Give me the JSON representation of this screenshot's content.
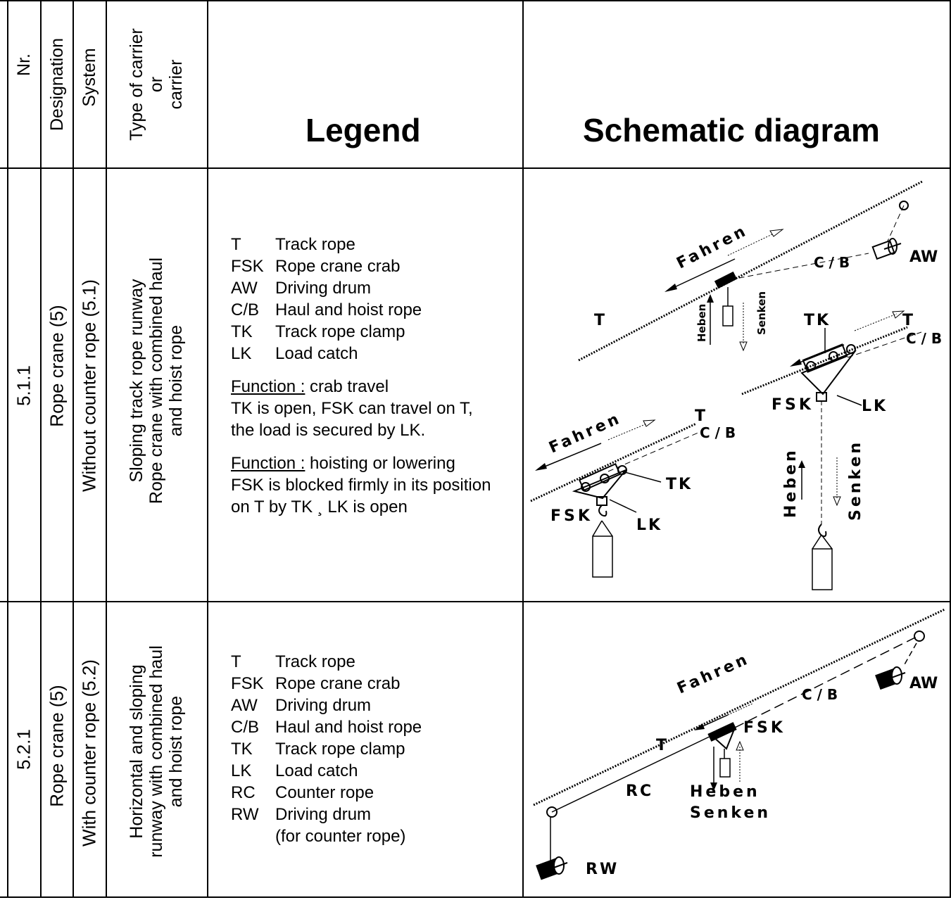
{
  "header": {
    "nr": "Nr.",
    "designation": "Designation",
    "system": "System",
    "type_line1": "Type of carrier",
    "type_line2": "or",
    "type_line3": "carrier",
    "legend": "Legend",
    "schematic": "Schematic diagram"
  },
  "rows": [
    {
      "nr": "5.1.1",
      "designation": "Rope crane (5)",
      "system": "Without counter rope (5.1)",
      "type_line1": "Sloping track rope runway",
      "type_line2": "Rope crane with combined haul",
      "type_line3": "and hoist rope",
      "legend_items": [
        {
          "code": "T",
          "desc": "Track rope"
        },
        {
          "code": "FSK",
          "desc": "Rope crane crab"
        },
        {
          "code": "AW",
          "desc": "Driving drum"
        },
        {
          "code": "C/B",
          "desc": "Haul and hoist rope"
        },
        {
          "code": "TK",
          "desc": "Track rope clamp"
        },
        {
          "code": "LK",
          "desc": "Load catch"
        }
      ],
      "function1_label": "Function :",
      "function1_title": " crab travel",
      "function1_line1": "TK is open, FSK can travel on T,",
      "function1_line2": "the load is secured by LK.",
      "function2_label": "Function :",
      "function2_title": " hoisting or lowering",
      "function2_line1": "FSK is blocked firmly in its position",
      "function2_line2": "on T by TK ¸ LK is open",
      "diagram_labels": {
        "fahren": "Fahren",
        "t": "T",
        "cb": "C / B",
        "aw": "AW",
        "heben": "Heben",
        "senken": "Senken",
        "tk": "TK",
        "fsk": "FSK",
        "lk": "LK"
      }
    },
    {
      "nr": "5.2.1",
      "designation": "Rope crane (5)",
      "system": "With counter rope (5.2)",
      "type_line1": "Horizontal and sloping",
      "type_line2": "runway with combined haul",
      "type_line3": "and hoist rope",
      "legend_items": [
        {
          "code": "T",
          "desc": "Track rope"
        },
        {
          "code": "FSK",
          "desc": "Rope crane crab"
        },
        {
          "code": "AW",
          "desc": "Driving drum"
        },
        {
          "code": "C/B",
          "desc": "Haul and hoist rope"
        },
        {
          "code": "TK",
          "desc": "Track rope clamp"
        },
        {
          "code": "LK",
          "desc": "Load catch"
        },
        {
          "code": "RC",
          "desc": "Counter rope"
        },
        {
          "code": "RW",
          "desc": "Driving drum"
        }
      ],
      "legend_extra": "(for counter rope)",
      "diagram_labels": {
        "fahren": "Fahren",
        "t": "T",
        "cb": "C / B",
        "aw": "AW",
        "fsk": "FSK",
        "rc": "RC",
        "heben": "Heben",
        "senken": "Senken",
        "rw": "RW"
      }
    }
  ]
}
